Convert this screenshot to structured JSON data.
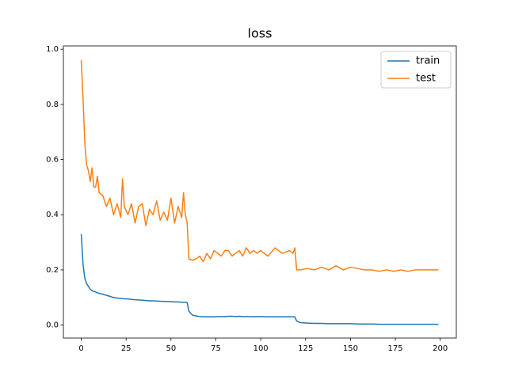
{
  "chart_data": {
    "type": "line",
    "title": "loss",
    "x": [
      0,
      1,
      2,
      3,
      4,
      5,
      6,
      7,
      8,
      9,
      10,
      12,
      14,
      16,
      18,
      20,
      22,
      23,
      24,
      26,
      28,
      30,
      32,
      34,
      36,
      38,
      40,
      42,
      44,
      46,
      48,
      50,
      52,
      54,
      56,
      57,
      58,
      59,
      60,
      62,
      64,
      66,
      68,
      70,
      72,
      74,
      76,
      78,
      80,
      82,
      84,
      86,
      88,
      90,
      92,
      94,
      96,
      98,
      100,
      104,
      108,
      112,
      116,
      118,
      119,
      120,
      122,
      126,
      130,
      134,
      138,
      142,
      146,
      150,
      154,
      158,
      162,
      166,
      170,
      174,
      178,
      182,
      186,
      190,
      194,
      199
    ],
    "series": [
      {
        "name": "train",
        "color": "#1f77b4",
        "values": [
          0.33,
          0.22,
          0.17,
          0.15,
          0.14,
          0.13,
          0.125,
          0.122,
          0.12,
          0.117,
          0.115,
          0.112,
          0.108,
          0.104,
          0.1,
          0.098,
          0.097,
          0.096,
          0.095,
          0.095,
          0.093,
          0.092,
          0.091,
          0.09,
          0.089,
          0.088,
          0.088,
          0.087,
          0.086,
          0.086,
          0.085,
          0.085,
          0.084,
          0.084,
          0.083,
          0.083,
          0.083,
          0.082,
          0.05,
          0.036,
          0.033,
          0.031,
          0.03,
          0.03,
          0.03,
          0.03,
          0.031,
          0.031,
          0.031,
          0.032,
          0.032,
          0.031,
          0.032,
          0.031,
          0.031,
          0.031,
          0.03,
          0.031,
          0.031,
          0.03,
          0.03,
          0.03,
          0.03,
          0.03,
          0.03,
          0.015,
          0.009,
          0.007,
          0.006,
          0.006,
          0.005,
          0.005,
          0.005,
          0.005,
          0.004,
          0.004,
          0.004,
          0.003,
          0.003,
          0.003,
          0.003,
          0.003,
          0.003,
          0.003,
          0.003,
          0.003
        ]
      },
      {
        "name": "test",
        "color": "#ff7f0e",
        "values": [
          0.96,
          0.82,
          0.66,
          0.58,
          0.56,
          0.52,
          0.57,
          0.5,
          0.5,
          0.54,
          0.48,
          0.47,
          0.43,
          0.46,
          0.4,
          0.44,
          0.39,
          0.53,
          0.43,
          0.4,
          0.44,
          0.37,
          0.43,
          0.44,
          0.36,
          0.42,
          0.4,
          0.45,
          0.38,
          0.41,
          0.38,
          0.46,
          0.37,
          0.43,
          0.39,
          0.48,
          0.4,
          0.37,
          0.24,
          0.235,
          0.24,
          0.25,
          0.23,
          0.26,
          0.24,
          0.27,
          0.26,
          0.25,
          0.27,
          0.27,
          0.25,
          0.26,
          0.27,
          0.25,
          0.28,
          0.26,
          0.27,
          0.26,
          0.27,
          0.25,
          0.28,
          0.26,
          0.27,
          0.26,
          0.28,
          0.2,
          0.2,
          0.205,
          0.2,
          0.21,
          0.2,
          0.215,
          0.2,
          0.21,
          0.205,
          0.2,
          0.2,
          0.195,
          0.2,
          0.195,
          0.2,
          0.195,
          0.2,
          0.2,
          0.2,
          0.2
        ]
      }
    ],
    "xlim": [
      -9.95,
      208.95
    ],
    "ylim": [
      -0.047,
      1.012
    ],
    "xticks": [
      0,
      25,
      50,
      75,
      100,
      125,
      150,
      175,
      200
    ],
    "yticks": [
      {
        "value": 0,
        "label": "0.0"
      },
      0.2,
      0.4,
      0.6,
      0.8,
      {
        "value": 1,
        "label": "1.0"
      }
    ],
    "legend": "upper right"
  }
}
